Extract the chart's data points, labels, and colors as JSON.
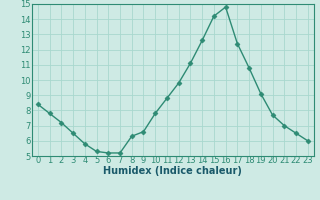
{
  "x": [
    0,
    1,
    2,
    3,
    4,
    5,
    6,
    7,
    8,
    9,
    10,
    11,
    12,
    13,
    14,
    15,
    16,
    17,
    18,
    19,
    20,
    21,
    22,
    23
  ],
  "y": [
    8.4,
    7.8,
    7.2,
    6.5,
    5.8,
    5.3,
    5.2,
    5.2,
    6.3,
    6.6,
    7.8,
    8.8,
    9.8,
    11.1,
    12.6,
    14.2,
    14.8,
    12.4,
    10.8,
    9.1,
    7.7,
    7.0,
    6.5,
    6.0
  ],
  "line_color": "#2e8b74",
  "marker": "D",
  "marker_size": 2.5,
  "linewidth": 1.0,
  "xlabel": "Humidex (Indice chaleur)",
  "xlabel_fontsize": 7,
  "xlim": [
    -0.5,
    23.5
  ],
  "ylim": [
    5,
    15
  ],
  "yticks": [
    5,
    6,
    7,
    8,
    9,
    10,
    11,
    12,
    13,
    14,
    15
  ],
  "xticks": [
    0,
    1,
    2,
    3,
    4,
    5,
    6,
    7,
    8,
    9,
    10,
    11,
    12,
    13,
    14,
    15,
    16,
    17,
    18,
    19,
    20,
    21,
    22,
    23
  ],
  "tick_fontsize": 6,
  "grid_color": "#a8d8ce",
  "bg_color": "#ceeae4",
  "xlabel_color": "#1a5a6a"
}
